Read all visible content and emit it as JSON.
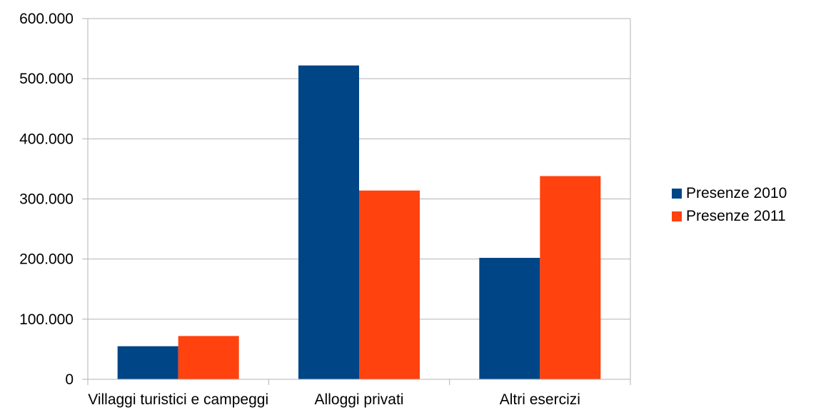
{
  "chart_data": {
    "type": "bar",
    "title": "",
    "xlabel": "",
    "ylabel": "",
    "categories": [
      "Villaggi turistici e campeggi",
      "Alloggi privati",
      "Altri esercizi"
    ],
    "series": [
      {
        "name": "Presenze 2010",
        "color": "#004586",
        "values": [
          55000,
          522000,
          202000
        ]
      },
      {
        "name": "Presenze 2011",
        "color": "#ff420e",
        "values": [
          72000,
          314000,
          338000
        ]
      }
    ],
    "ylim": [
      0,
      600000
    ],
    "yticks": [
      0,
      100000,
      200000,
      300000,
      400000,
      500000,
      600000
    ],
    "ytick_labels": [
      "0",
      "100.000",
      "200.000",
      "300.000",
      "400.000",
      "500.000",
      "600.000"
    ],
    "grid": true,
    "legend_position": "right"
  }
}
